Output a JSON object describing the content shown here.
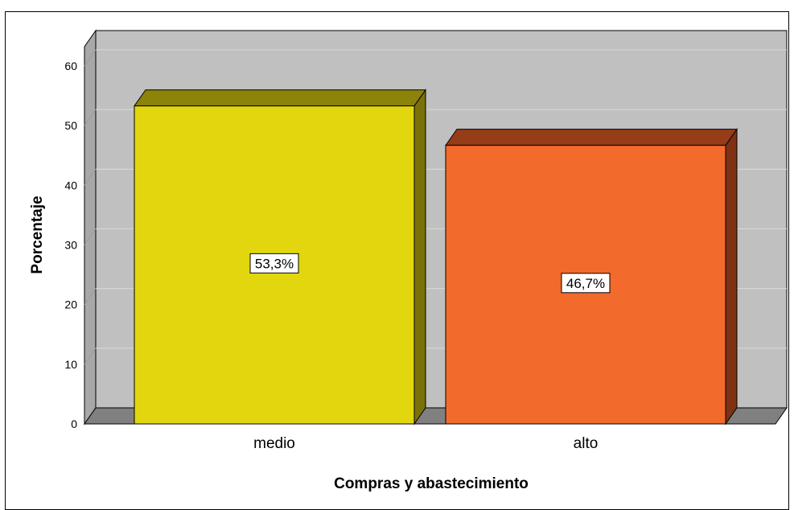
{
  "chart_data": {
    "type": "bar",
    "categories": [
      "medio",
      "alto"
    ],
    "values": [
      53.3,
      46.7
    ],
    "data_labels": [
      "53,3%",
      "46,7%"
    ],
    "colors": {
      "medio": {
        "front": "#e2d70f",
        "top": "#8c830b",
        "side": "#7a7208"
      },
      "alto": {
        "front": "#f26a2c",
        "top": "#963c18",
        "side": "#7e3213"
      },
      "wall": "#c0c0c0",
      "floor": "#808080"
    },
    "xlabel": "Compras y abastecimiento",
    "ylabel": "Porcentaje",
    "ylim": [
      0,
      60
    ],
    "yticks": [
      0,
      10,
      20,
      30,
      40,
      50,
      60
    ],
    "grid": true,
    "three_d": true
  }
}
